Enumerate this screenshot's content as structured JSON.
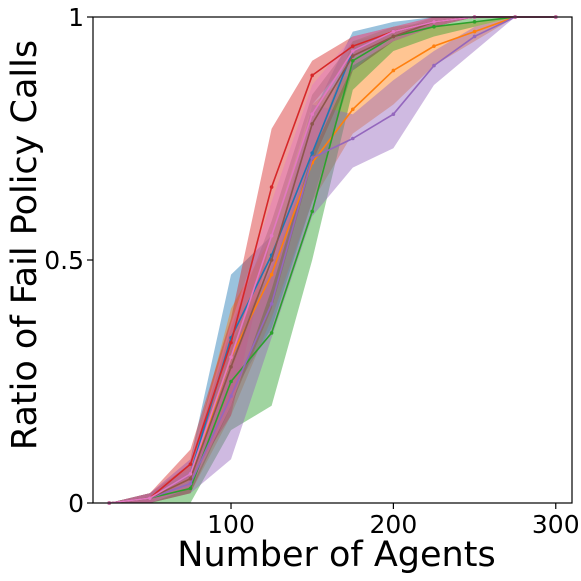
{
  "chart_data": {
    "type": "line",
    "title": "",
    "xlabel": "Number of Agents",
    "ylabel": "Ratio of Fail Policy Calls",
    "xlim": [
      15,
      310
    ],
    "ylim": [
      0,
      1
    ],
    "xticks": [
      100,
      200,
      300
    ],
    "xtick_labels": [
      "100",
      "200",
      "300"
    ],
    "yticks": [
      0,
      0.5,
      1
    ],
    "ytick_labels": [
      "0",
      "0.5",
      "1"
    ],
    "grid": false,
    "legend": "none",
    "series": [
      {
        "color": "#1f77b4",
        "x": [
          25,
          50,
          75,
          100,
          125,
          150,
          175,
          200,
          225,
          250,
          275,
          300
        ],
        "y": [
          0,
          0.01,
          0.06,
          0.34,
          0.51,
          0.72,
          0.93,
          0.97,
          0.99,
          1.0,
          1.0,
          1.0
        ],
        "lower": [
          0,
          0,
          0.03,
          0.22,
          0.36,
          0.62,
          0.89,
          0.95,
          0.98,
          1.0,
          1.0,
          1.0
        ],
        "upper": [
          0,
          0.02,
          0.09,
          0.47,
          0.55,
          0.8,
          0.97,
          0.99,
          1.0,
          1.0,
          1.0,
          1.0
        ]
      },
      {
        "color": "#ff7f0e",
        "x": [
          25,
          50,
          75,
          100,
          125,
          150,
          175,
          200,
          225,
          250,
          275,
          300
        ],
        "y": [
          0,
          0.01,
          0.05,
          0.3,
          0.47,
          0.7,
          0.81,
          0.89,
          0.94,
          0.97,
          1.0,
          1.0
        ],
        "lower": [
          0,
          0,
          0.02,
          0.18,
          0.38,
          0.62,
          0.76,
          0.82,
          0.9,
          0.95,
          1.0,
          1.0
        ],
        "upper": [
          0,
          0.02,
          0.08,
          0.4,
          0.55,
          0.82,
          0.89,
          0.96,
          0.98,
          0.99,
          1.0,
          1.0
        ]
      },
      {
        "color": "#2ca02c",
        "x": [
          25,
          50,
          75,
          100,
          125,
          150,
          175,
          200,
          225,
          250,
          275,
          300
        ],
        "y": [
          0,
          0.01,
          0.03,
          0.25,
          0.35,
          0.6,
          0.91,
          0.96,
          0.98,
          0.99,
          1.0,
          1.0
        ],
        "lower": [
          0,
          0,
          0,
          0.15,
          0.2,
          0.5,
          0.85,
          0.93,
          0.96,
          0.98,
          1.0,
          1.0
        ],
        "upper": [
          0,
          0.02,
          0.06,
          0.33,
          0.48,
          0.72,
          0.95,
          0.98,
          0.99,
          1.0,
          1.0,
          1.0
        ]
      },
      {
        "color": "#d62728",
        "x": [
          25,
          50,
          75,
          100,
          125,
          150,
          175,
          200,
          225,
          250,
          275,
          300
        ],
        "y": [
          0,
          0.01,
          0.08,
          0.33,
          0.65,
          0.88,
          0.94,
          0.97,
          0.99,
          1.0,
          1.0,
          1.0
        ],
        "lower": [
          0,
          0,
          0.05,
          0.18,
          0.55,
          0.82,
          0.92,
          0.96,
          0.98,
          1.0,
          1.0,
          1.0
        ],
        "upper": [
          0,
          0.02,
          0.11,
          0.38,
          0.77,
          0.91,
          0.96,
          0.98,
          1.0,
          1.0,
          1.0,
          1.0
        ]
      },
      {
        "color": "#9467bd",
        "x": [
          25,
          50,
          75,
          100,
          125,
          150,
          175,
          200,
          225,
          250,
          275,
          300
        ],
        "y": [
          0,
          0.01,
          0.04,
          0.22,
          0.41,
          0.71,
          0.75,
          0.8,
          0.9,
          0.96,
          1.0,
          1.0
        ],
        "lower": [
          0,
          0,
          0.02,
          0.09,
          0.34,
          0.59,
          0.69,
          0.73,
          0.86,
          0.93,
          1.0,
          1.0
        ],
        "upper": [
          0,
          0.02,
          0.07,
          0.27,
          0.49,
          0.82,
          0.8,
          0.87,
          0.93,
          0.98,
          1.0,
          1.0
        ]
      },
      {
        "color": "#8c564b",
        "x": [
          25,
          50,
          75,
          100,
          125,
          150,
          175,
          200,
          225,
          250,
          275,
          300
        ],
        "y": [
          0,
          0.01,
          0.05,
          0.28,
          0.5,
          0.78,
          0.92,
          0.96,
          0.99,
          1.0,
          1.0,
          1.0
        ],
        "lower": [
          0,
          0,
          0.02,
          0.2,
          0.4,
          0.7,
          0.89,
          0.95,
          0.98,
          1.0,
          1.0,
          1.0
        ],
        "upper": [
          0,
          0.02,
          0.08,
          0.36,
          0.58,
          0.84,
          0.95,
          0.97,
          1.0,
          1.0,
          1.0,
          1.0
        ]
      },
      {
        "color": "#e377c2",
        "x": [
          25,
          50,
          75,
          100,
          125,
          150,
          175,
          200,
          225,
          250,
          275,
          300
        ],
        "y": [
          0,
          0.01,
          0.06,
          0.3,
          0.55,
          0.8,
          0.93,
          0.97,
          0.99,
          1.0,
          1.0,
          1.0
        ],
        "lower": [
          0,
          0,
          0.03,
          0.2,
          0.44,
          0.72,
          0.9,
          0.95,
          0.98,
          1.0,
          1.0,
          1.0
        ],
        "upper": [
          0,
          0.02,
          0.09,
          0.37,
          0.62,
          0.86,
          0.96,
          0.98,
          1.0,
          1.0,
          1.0,
          1.0
        ]
      }
    ]
  }
}
